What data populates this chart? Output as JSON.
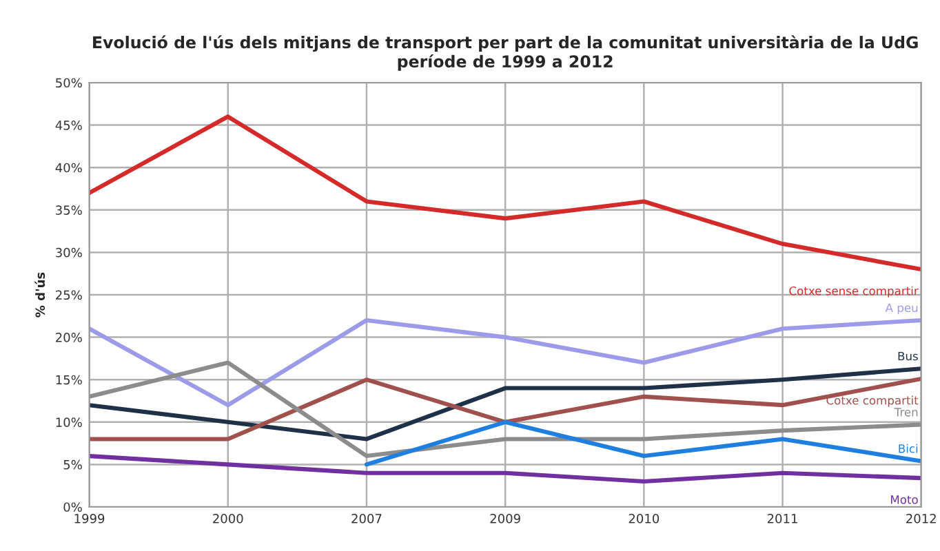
{
  "chart_data": {
    "type": "line",
    "title": "Evolució de l'ús dels mitjans de transport per part de la comunitat universitària de la UdG\nperíode de 1999 a 2012",
    "ylabel": "% d'ús",
    "categories": [
      "1999",
      "2000",
      "2007",
      "2009",
      "2010",
      "2011",
      "2012"
    ],
    "series": [
      {
        "name": "Cotxe sense compartir",
        "color": "#d42a2a",
        "values": [
          37,
          46,
          36,
          34,
          36,
          31,
          28
        ]
      },
      {
        "name": "A peu",
        "color": "#9b9bea",
        "values": [
          21,
          12,
          22,
          20,
          17,
          21,
          22
        ]
      },
      {
        "name": "Bus",
        "color": "#1f3148",
        "values": [
          12,
          10,
          8,
          14,
          14,
          15,
          16.3
        ]
      },
      {
        "name": "Cotxe compartit",
        "color": "#a0504d",
        "values": [
          8,
          8,
          15,
          10,
          13,
          12,
          15.1
        ]
      },
      {
        "name": "Tren",
        "color": "#8c8c8c",
        "values": [
          13,
          17,
          6,
          8,
          8,
          9,
          9.7
        ]
      },
      {
        "name": "Bici",
        "color": "#1f7fe0",
        "values": [
          null,
          null,
          5,
          10,
          6,
          8,
          5.4
        ]
      },
      {
        "name": "Moto",
        "color": "#7030a0",
        "values": [
          6,
          5,
          4,
          4,
          3,
          4,
          3.4
        ]
      }
    ],
    "ylim": [
      0,
      50
    ],
    "yticks": [
      {
        "value": 0,
        "label": "0%"
      },
      {
        "value": 5,
        "label": "5%"
      },
      {
        "value": 10,
        "label": "10%"
      },
      {
        "value": 15,
        "label": "15%"
      },
      {
        "value": 20,
        "label": "20%"
      },
      {
        "value": 25,
        "label": "25%"
      },
      {
        "value": 30,
        "label": "30%"
      },
      {
        "value": 35,
        "label": "35%"
      },
      {
        "value": 40,
        "label": "40%"
      },
      {
        "value": 45,
        "label": "45%"
      },
      {
        "value": 50,
        "label": "50%"
      }
    ],
    "grid": true,
    "legend": false,
    "marker": "none",
    "line_style": "solid"
  }
}
